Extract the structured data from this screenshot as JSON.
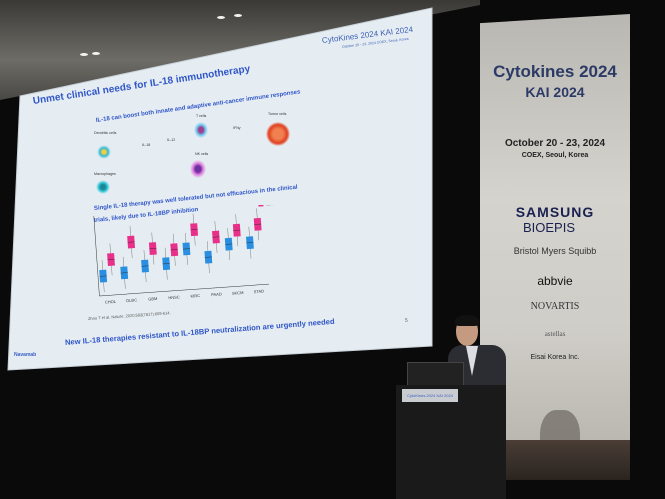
{
  "slide": {
    "title": "Unmet clinical needs for IL-18 immunotherapy",
    "subtitle_1": "IL-18 can boost both innate and adaptive anti-cancer immune responses",
    "diagram_labels": {
      "dendritic": "Dendritic cells",
      "macrophages": "Macrophages",
      "il18": "IL-18",
      "il12": "IL-12",
      "tcells": "T cells",
      "nkcells": "NK cells",
      "ifng": "IFNγ",
      "tumor": "Tumor cells"
    },
    "subtitle_2_line1": "Single IL-18 therapy was well tolerated but not efficacious in the clinical",
    "subtitle_2_line2": "trials, likely due to IL-18BP inhibition",
    "citation": "Zhou T et al. Nature. 2020;583(7817):609-614.",
    "bullet": "New IL-18 therapies resistant to IL-18BP neutralization are urgently needed",
    "logo": "CytoKines 2024  KAI 2024",
    "logo_sub": "October 20 - 23, 2024  COEX, Seoul, Korea",
    "brand": "Navamab",
    "page_number": "5"
  },
  "chart_data": {
    "type": "box",
    "categories": [
      "CHOL",
      "DLBC",
      "GBM",
      "HNSC",
      "KIRC",
      "PAAD",
      "SKCM",
      "STAD"
    ],
    "series": [
      {
        "name": "Normal",
        "color": "#2a8fe0",
        "medians": [
          2.2,
          2.4,
          3.0,
          3.1,
          4.6,
          3.5,
          4.8,
          4.8
        ]
      },
      {
        "name": "Tumor",
        "color": "#e8308a",
        "medians": [
          4.0,
          5.8,
          4.9,
          4.6,
          6.7,
          5.7,
          6.3,
          6.8
        ]
      }
    ],
    "ylim": [
      0,
      9
    ]
  },
  "banner": {
    "title": "Cytokines 2024",
    "subtitle": "KAI 2024",
    "dates": "October 20 - 23, 2024",
    "venue": "COEX, Seoul, Korea",
    "sponsors": [
      "SAMSUNG",
      "BIOEPIS",
      "Bristol Myers Squibb",
      "abbvie",
      "NOVARTIS",
      "astellas",
      "Eisai Korea Inc."
    ]
  },
  "podium": {
    "sign": "CytoKines 2024 KAI 2024"
  }
}
